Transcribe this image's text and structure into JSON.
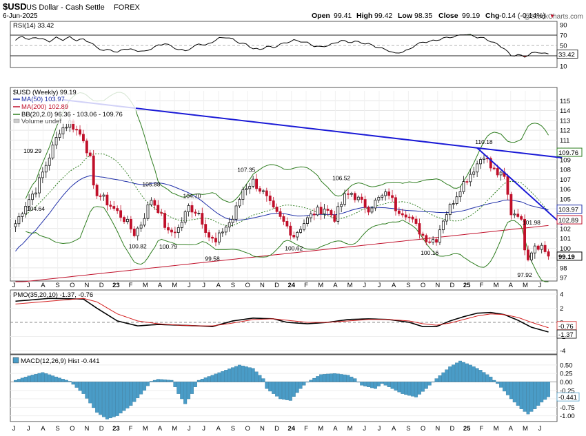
{
  "header": {
    "symbol": "$USD",
    "name": "US Dollar - Cash Settle",
    "exchange": "FOREX",
    "date": "6-Jun-2025",
    "open_label": "Open",
    "open": "99.41",
    "high_label": "High",
    "high": "99.42",
    "low_label": "Low",
    "low": "98.35",
    "close_label": "Close",
    "close": "99.19",
    "chg_label": "Chg",
    "chg": "-0.14 (-0.14%)",
    "chg_marker": "▼",
    "watermark": "@StockCharts.com"
  },
  "colors": {
    "up": "#111111",
    "down": "#c0102a",
    "ma50": "#1f2fa8",
    "ma200": "#c0102a",
    "bb": "#2e7d1f",
    "trend": "#1a1ad6",
    "rsi_fill": "#3d8b2a",
    "hist": "#4a9cc7",
    "pmo_signal": "#d42020"
  },
  "chart_data": [
    {
      "type": "line",
      "panel": "RSI",
      "title": "RSI(14) 33.42",
      "last_value": "33.42",
      "levels": [
        70,
        50,
        30
      ],
      "y_ticks": [
        "90",
        "70",
        "50",
        "30",
        "10"
      ],
      "ylim": [
        10,
        90
      ],
      "points": [
        [
          0,
          60
        ],
        [
          2,
          68
        ],
        [
          4,
          61
        ],
        [
          6,
          66
        ],
        [
          8,
          62
        ],
        [
          10,
          58
        ],
        [
          12,
          65
        ],
        [
          14,
          61
        ],
        [
          16,
          66
        ],
        [
          18,
          60
        ],
        [
          20,
          62
        ],
        [
          22,
          56
        ],
        [
          24,
          46
        ],
        [
          26,
          40
        ],
        [
          28,
          42
        ],
        [
          30,
          36
        ],
        [
          32,
          44
        ],
        [
          34,
          42
        ],
        [
          36,
          40
        ],
        [
          38,
          38
        ],
        [
          40,
          44
        ],
        [
          42,
          50
        ],
        [
          44,
          54
        ],
        [
          46,
          48
        ],
        [
          48,
          42
        ],
        [
          50,
          40
        ],
        [
          52,
          45
        ],
        [
          54,
          54
        ],
        [
          56,
          50
        ],
        [
          58,
          57
        ],
        [
          60,
          64
        ],
        [
          62,
          66
        ],
        [
          64,
          62
        ],
        [
          66,
          55
        ],
        [
          68,
          52
        ],
        [
          70,
          44
        ],
        [
          72,
          42
        ],
        [
          74,
          48
        ],
        [
          76,
          46
        ],
        [
          78,
          52
        ],
        [
          80,
          56
        ],
        [
          82,
          60
        ],
        [
          84,
          58
        ],
        [
          86,
          55
        ],
        [
          88,
          49
        ],
        [
          90,
          47
        ],
        [
          92,
          50
        ],
        [
          94,
          54
        ],
        [
          96,
          60
        ],
        [
          98,
          56
        ],
        [
          100,
          58
        ],
        [
          102,
          55
        ],
        [
          104,
          53
        ],
        [
          106,
          48
        ],
        [
          108,
          44
        ],
        [
          110,
          40
        ],
        [
          112,
          34
        ],
        [
          114,
          38
        ],
        [
          116,
          42
        ],
        [
          118,
          52
        ],
        [
          120,
          56
        ],
        [
          122,
          58
        ],
        [
          124,
          60
        ],
        [
          126,
          64
        ],
        [
          128,
          66
        ],
        [
          130,
          68
        ],
        [
          132,
          72
        ],
        [
          134,
          70
        ],
        [
          136,
          66
        ],
        [
          138,
          64
        ],
        [
          140,
          58
        ],
        [
          142,
          52
        ],
        [
          144,
          44
        ],
        [
          146,
          30
        ],
        [
          148,
          32
        ],
        [
          150,
          28
        ],
        [
          152,
          35
        ],
        [
          154,
          37
        ],
        [
          156,
          34
        ],
        [
          157,
          33.42
        ]
      ]
    },
    {
      "type": "candlestick",
      "panel": "Price",
      "title": "$USD (Weekly) 99.19",
      "x_axis_months": [
        "J",
        "J",
        "A",
        "S",
        "O",
        "N",
        "D",
        "23",
        "F",
        "M",
        "A",
        "M",
        "J",
        "J",
        "A",
        "S",
        "O",
        "N",
        "D",
        "24",
        "F",
        "M",
        "A",
        "M",
        "J",
        "J",
        "A",
        "S",
        "O",
        "N",
        "D",
        "25",
        "F",
        "M",
        "A",
        "M",
        "J"
      ],
      "y_ticks": [
        "115",
        "114",
        "113",
        "112",
        "111",
        "110",
        "109",
        "108",
        "107",
        "106",
        "105",
        "104",
        "103",
        "102",
        "101",
        "100",
        "99",
        "98",
        "97"
      ],
      "ylim": [
        96.8,
        116
      ],
      "legend": [
        {
          "label": "MA(50) 103.97",
          "color": "#1f2fa8"
        },
        {
          "label": "MA(200) 102.89",
          "color": "#c0102a"
        },
        {
          "label": "BB(20,2.0) 96.36 - 103.06 - 109.76",
          "color": "#2e7d1f"
        },
        {
          "label": "Volume undef",
          "color": "#888888"
        }
      ],
      "right_badges": [
        {
          "value": "109.76",
          "color": "#2e7d1f"
        },
        {
          "value": "103.97",
          "color": "#1f2fa8"
        },
        {
          "value": "102.89",
          "color": "#c0102a"
        },
        {
          "value": "99.19",
          "color": "#000000"
        }
      ],
      "annotations": [
        {
          "text": "109.29",
          "i": 5,
          "price": 109.29,
          "pos": "above"
        },
        {
          "text": "104.64",
          "i": 6,
          "price": 104.64,
          "pos": "below"
        },
        {
          "text": "100.82",
          "i": 36,
          "price": 100.82,
          "pos": "below"
        },
        {
          "text": "105.88",
          "i": 40,
          "price": 105.88,
          "pos": "above"
        },
        {
          "text": "100.79",
          "i": 45,
          "price": 100.79,
          "pos": "below"
        },
        {
          "text": "104.70",
          "i": 52,
          "price": 104.7,
          "pos": "above"
        },
        {
          "text": "99.58",
          "i": 58,
          "price": 99.58,
          "pos": "below"
        },
        {
          "text": "107.35",
          "i": 68,
          "price": 107.35,
          "pos": "above"
        },
        {
          "text": "100.62",
          "i": 82,
          "price": 100.62,
          "pos": "below"
        },
        {
          "text": "106.52",
          "i": 96,
          "price": 106.52,
          "pos": "above"
        },
        {
          "text": "100.16",
          "i": 122,
          "price": 100.16,
          "pos": "below"
        },
        {
          "text": "110.18",
          "i": 138,
          "price": 110.18,
          "pos": "above"
        },
        {
          "text": "101.98",
          "i": 152,
          "price": 101.98,
          "pos": "above"
        },
        {
          "text": "97.92",
          "i": 150,
          "price": 97.92,
          "pos": "below"
        }
      ],
      "closes_key_points": [
        [
          0,
          102.5
        ],
        [
          3,
          104.5
        ],
        [
          6,
          106.0
        ],
        [
          9,
          108.5
        ],
        [
          13,
          112.0
        ],
        [
          16,
          112.8
        ],
        [
          20,
          111.2
        ],
        [
          22,
          109.0
        ],
        [
          23,
          106.0
        ],
        [
          26,
          105.0
        ],
        [
          29,
          104.0
        ],
        [
          32,
          103.0
        ],
        [
          35,
          101.5
        ],
        [
          37,
          102.5
        ],
        [
          40,
          105.0
        ],
        [
          42,
          104.0
        ],
        [
          45,
          101.5
        ],
        [
          48,
          102.0
        ],
        [
          51,
          104.2
        ],
        [
          54,
          103.6
        ],
        [
          57,
          101.2
        ],
        [
          59,
          100.5
        ],
        [
          61,
          101.8
        ],
        [
          64,
          103.0
        ],
        [
          67,
          106.0
        ],
        [
          70,
          106.8
        ],
        [
          73,
          105.6
        ],
        [
          76,
          103.8
        ],
        [
          80,
          102.2
        ],
        [
          82,
          101.3
        ],
        [
          85,
          102.6
        ],
        [
          88,
          103.6
        ],
        [
          91,
          104.1
        ],
        [
          94,
          103.1
        ],
        [
          97,
          105.2
        ],
        [
          99,
          105.6
        ],
        [
          102,
          104.6
        ],
        [
          104,
          104.1
        ],
        [
          107,
          105.0
        ],
        [
          110,
          105.6
        ],
        [
          112,
          104.1
        ],
        [
          115,
          103.6
        ],
        [
          118,
          102.2
        ],
        [
          120,
          101.3
        ],
        [
          122,
          100.8
        ],
        [
          124,
          101.0
        ],
        [
          126,
          103.0
        ],
        [
          128,
          104.2
        ],
        [
          131,
          106.2
        ],
        [
          134,
          107.6
        ],
        [
          136,
          108.6
        ],
        [
          138,
          109.6
        ],
        [
          140,
          108.2
        ],
        [
          142,
          107.6
        ],
        [
          144,
          107.1
        ],
        [
          146,
          103.6
        ],
        [
          148,
          103.6
        ],
        [
          149,
          102.6
        ],
        [
          150,
          100.2
        ],
        [
          151,
          99.2
        ],
        [
          153,
          100.4
        ],
        [
          155,
          100.2
        ],
        [
          157,
          99.19
        ]
      ],
      "trendlines": [
        {
          "from": [
            14,
            115.1
          ],
          "to": [
            161,
            109.2
          ]
        },
        {
          "from": [
            136,
            110.2
          ],
          "to": [
            161,
            102.4
          ]
        }
      ]
    },
    {
      "type": "line",
      "panel": "PMO",
      "title": "PMO(35,20,10) -1.37, -0.76",
      "y_ticks": [
        "4",
        "2",
        "0",
        "-2",
        "-4"
      ],
      "ylim": [
        -4.2,
        4.2
      ],
      "badges": [
        "-0.76",
        "-1.37"
      ],
      "series": [
        {
          "name": "PMO",
          "points": [
            [
              0,
              3.0
            ],
            [
              10,
              3.4
            ],
            [
              20,
              3.3
            ],
            [
              24,
              2.0
            ],
            [
              30,
              0.2
            ],
            [
              36,
              -0.5
            ],
            [
              42,
              -0.3
            ],
            [
              48,
              -0.4
            ],
            [
              54,
              -0.5
            ],
            [
              58,
              -0.6
            ],
            [
              64,
              0.2
            ],
            [
              70,
              0.6
            ],
            [
              76,
              0.5
            ],
            [
              80,
              0.0
            ],
            [
              86,
              -0.2
            ],
            [
              92,
              0.0
            ],
            [
              98,
              0.4
            ],
            [
              104,
              0.5
            ],
            [
              110,
              0.4
            ],
            [
              116,
              0.0
            ],
            [
              120,
              -0.6
            ],
            [
              124,
              -0.6
            ],
            [
              128,
              0.2
            ],
            [
              132,
              0.8
            ],
            [
              136,
              1.3
            ],
            [
              140,
              1.4
            ],
            [
              144,
              1.1
            ],
            [
              148,
              0.3
            ],
            [
              152,
              -0.7
            ],
            [
              157,
              -1.37
            ]
          ]
        },
        {
          "name": "Signal",
          "points": [
            [
              0,
              2.6
            ],
            [
              10,
              3.0
            ],
            [
              20,
              3.4
            ],
            [
              24,
              2.9
            ],
            [
              30,
              1.2
            ],
            [
              36,
              0.2
            ],
            [
              42,
              -0.2
            ],
            [
              48,
              -0.4
            ],
            [
              54,
              -0.5
            ],
            [
              58,
              -0.5
            ],
            [
              64,
              -0.1
            ],
            [
              70,
              0.4
            ],
            [
              76,
              0.5
            ],
            [
              80,
              0.3
            ],
            [
              86,
              0.0
            ],
            [
              92,
              0.0
            ],
            [
              98,
              0.2
            ],
            [
              104,
              0.4
            ],
            [
              110,
              0.4
            ],
            [
              116,
              0.2
            ],
            [
              120,
              -0.2
            ],
            [
              124,
              -0.4
            ],
            [
              128,
              -0.1
            ],
            [
              132,
              0.4
            ],
            [
              136,
              0.9
            ],
            [
              140,
              1.2
            ],
            [
              144,
              1.1
            ],
            [
              148,
              0.7
            ],
            [
              152,
              0.0
            ],
            [
              157,
              -0.76
            ]
          ]
        }
      ]
    },
    {
      "type": "bar",
      "panel": "MACD",
      "title": "MACD(12,26,9) Hist -0.441",
      "y_ticks": [
        "0.50",
        "0.25",
        "0.00",
        "-0.25",
        "-0.50",
        "-0.75",
        "-1.00"
      ],
      "ylim": [
        -1.15,
        0.62
      ],
      "badges": [
        "-0.441"
      ],
      "x_axis_months": [
        "J",
        "J",
        "A",
        "S",
        "O",
        "N",
        "D",
        "23",
        "F",
        "M",
        "A",
        "M",
        "J",
        "J",
        "A",
        "S",
        "O",
        "N",
        "D",
        "24",
        "F",
        "M",
        "A",
        "M",
        "J",
        "J",
        "A",
        "S",
        "O",
        "N",
        "D",
        "25",
        "F",
        "M",
        "A",
        "M",
        "J"
      ],
      "hist_key_points": [
        [
          0,
          0.05
        ],
        [
          4,
          0.18
        ],
        [
          8,
          0.28
        ],
        [
          12,
          0.15
        ],
        [
          16,
          0.02
        ],
        [
          20,
          -0.35
        ],
        [
          24,
          -0.9
        ],
        [
          27,
          -1.1
        ],
        [
          30,
          -1.0
        ],
        [
          34,
          -0.7
        ],
        [
          38,
          -0.25
        ],
        [
          40,
          0.02
        ],
        [
          42,
          0.08
        ],
        [
          46,
          0.05
        ],
        [
          48,
          -0.35
        ],
        [
          50,
          -0.65
        ],
        [
          52,
          -0.35
        ],
        [
          54,
          0.05
        ],
        [
          58,
          0.2
        ],
        [
          62,
          0.35
        ],
        [
          66,
          0.5
        ],
        [
          70,
          0.4
        ],
        [
          73,
          0.1
        ],
        [
          74,
          -0.2
        ],
        [
          78,
          -0.5
        ],
        [
          81,
          -0.55
        ],
        [
          84,
          -0.2
        ],
        [
          86,
          0.0
        ],
        [
          90,
          0.22
        ],
        [
          94,
          0.25
        ],
        [
          98,
          0.2
        ],
        [
          100,
          0.1
        ],
        [
          102,
          -0.1
        ],
        [
          106,
          -0.2
        ],
        [
          108,
          -0.05
        ],
        [
          110,
          -0.15
        ],
        [
          114,
          -0.35
        ],
        [
          118,
          -0.45
        ],
        [
          121,
          -0.2
        ],
        [
          124,
          0.1
        ],
        [
          128,
          0.45
        ],
        [
          131,
          0.62
        ],
        [
          134,
          0.5
        ],
        [
          137,
          0.35
        ],
        [
          140,
          0.15
        ],
        [
          142,
          -0.05
        ],
        [
          146,
          -0.5
        ],
        [
          149,
          -0.8
        ],
        [
          151,
          -0.95
        ],
        [
          153,
          -0.8
        ],
        [
          155,
          -0.6
        ],
        [
          157,
          -0.441
        ]
      ]
    }
  ]
}
